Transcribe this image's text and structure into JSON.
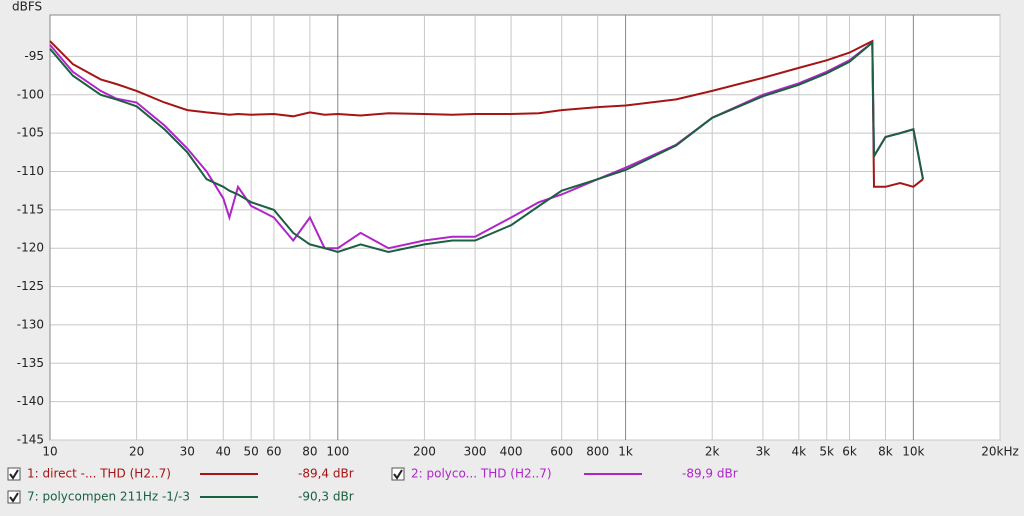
{
  "chart_data": {
    "type": "line",
    "y_label": "dBFS",
    "log_x": true,
    "grid": true,
    "xlim": [
      10,
      20000
    ],
    "ylim": [
      -145,
      -89.6
    ],
    "xticks": [
      10,
      20,
      30,
      40,
      50,
      60,
      80,
      100,
      200,
      300,
      400,
      600,
      800,
      {
        "value": 1000,
        "label": "1k"
      },
      {
        "value": 2000,
        "label": "2k"
      },
      {
        "value": 3000,
        "label": "3k"
      },
      {
        "value": 4000,
        "label": "4k"
      },
      {
        "value": 5000,
        "label": "5k"
      },
      {
        "value": 6000,
        "label": "6k"
      },
      {
        "value": 8000,
        "label": "8k"
      },
      {
        "value": 10000,
        "label": "10k"
      },
      {
        "value": 20000,
        "label": "20kHz"
      }
    ],
    "yticks": [
      -95,
      -100,
      -105,
      -110,
      -115,
      -120,
      -125,
      -130,
      -135,
      -140,
      -145
    ],
    "x": [
      10,
      12,
      15,
      17,
      20,
      25,
      30,
      35,
      40,
      42,
      45,
      50,
      60,
      70,
      80,
      90,
      100,
      120,
      150,
      200,
      250,
      300,
      400,
      500,
      600,
      800,
      1000,
      1500,
      2000,
      3000,
      4000,
      5000,
      6000,
      7200,
      7300,
      8000,
      9000,
      10000,
      10800
    ],
    "series": [
      {
        "name": "1: direct -... THD (H2..7)",
        "legend_value": "-89,4 dBr",
        "color": "#a51515",
        "values": [
          -93,
          -96,
          -98,
          -98.6,
          -99.5,
          -101,
          -102,
          -102.3,
          -102.5,
          -102.6,
          -102.5,
          -102.6,
          -102.5,
          -102.8,
          -102.3,
          -102.6,
          -102.5,
          -102.7,
          -102.4,
          -102.5,
          -102.6,
          -102.5,
          -102.5,
          -102.4,
          -102,
          -101.6,
          -101.4,
          -100.6,
          -99.5,
          -97.8,
          -96.5,
          -95.5,
          -94.5,
          -93,
          -112,
          -112,
          -111.5,
          -112,
          -111
        ]
      },
      {
        "name": "2: polyco... THD (H2..7)",
        "legend_value": "-89,9 dBr",
        "color": "#b025c8",
        "values": [
          -93.5,
          -97,
          -99.5,
          -100.5,
          -101,
          -104,
          -107,
          -110,
          -113.5,
          -116,
          -112,
          -114.5,
          -116,
          -119,
          -116,
          -120,
          -120,
          -118,
          -120,
          -119,
          -118.5,
          -118.5,
          -116,
          -114,
          -113,
          -111,
          -109.5,
          -106.5,
          -103,
          -100,
          -98.5,
          -97,
          -95.5,
          -93.2,
          -108,
          -105.5,
          -105,
          -104.5,
          -111
        ]
      },
      {
        "name": "7: polycompen 211Hz -1/-3",
        "legend_value": "-90,3 dBr",
        "color": "#1b6040",
        "values": [
          -94,
          -97.5,
          -100,
          -100.6,
          -101.5,
          -104.5,
          -107.5,
          -111,
          -112,
          -112.5,
          -113,
          -114,
          -115,
          -118,
          -119.5,
          -120,
          -120.5,
          -119.5,
          -120.5,
          -119.5,
          -119,
          -119,
          -117,
          -114.5,
          -112.5,
          -111,
          -109.8,
          -106.6,
          -103,
          -100.2,
          -98.7,
          -97.2,
          -95.7,
          -93.2,
          -108,
          -105.5,
          -105,
          -104.5,
          -111
        ]
      }
    ]
  }
}
